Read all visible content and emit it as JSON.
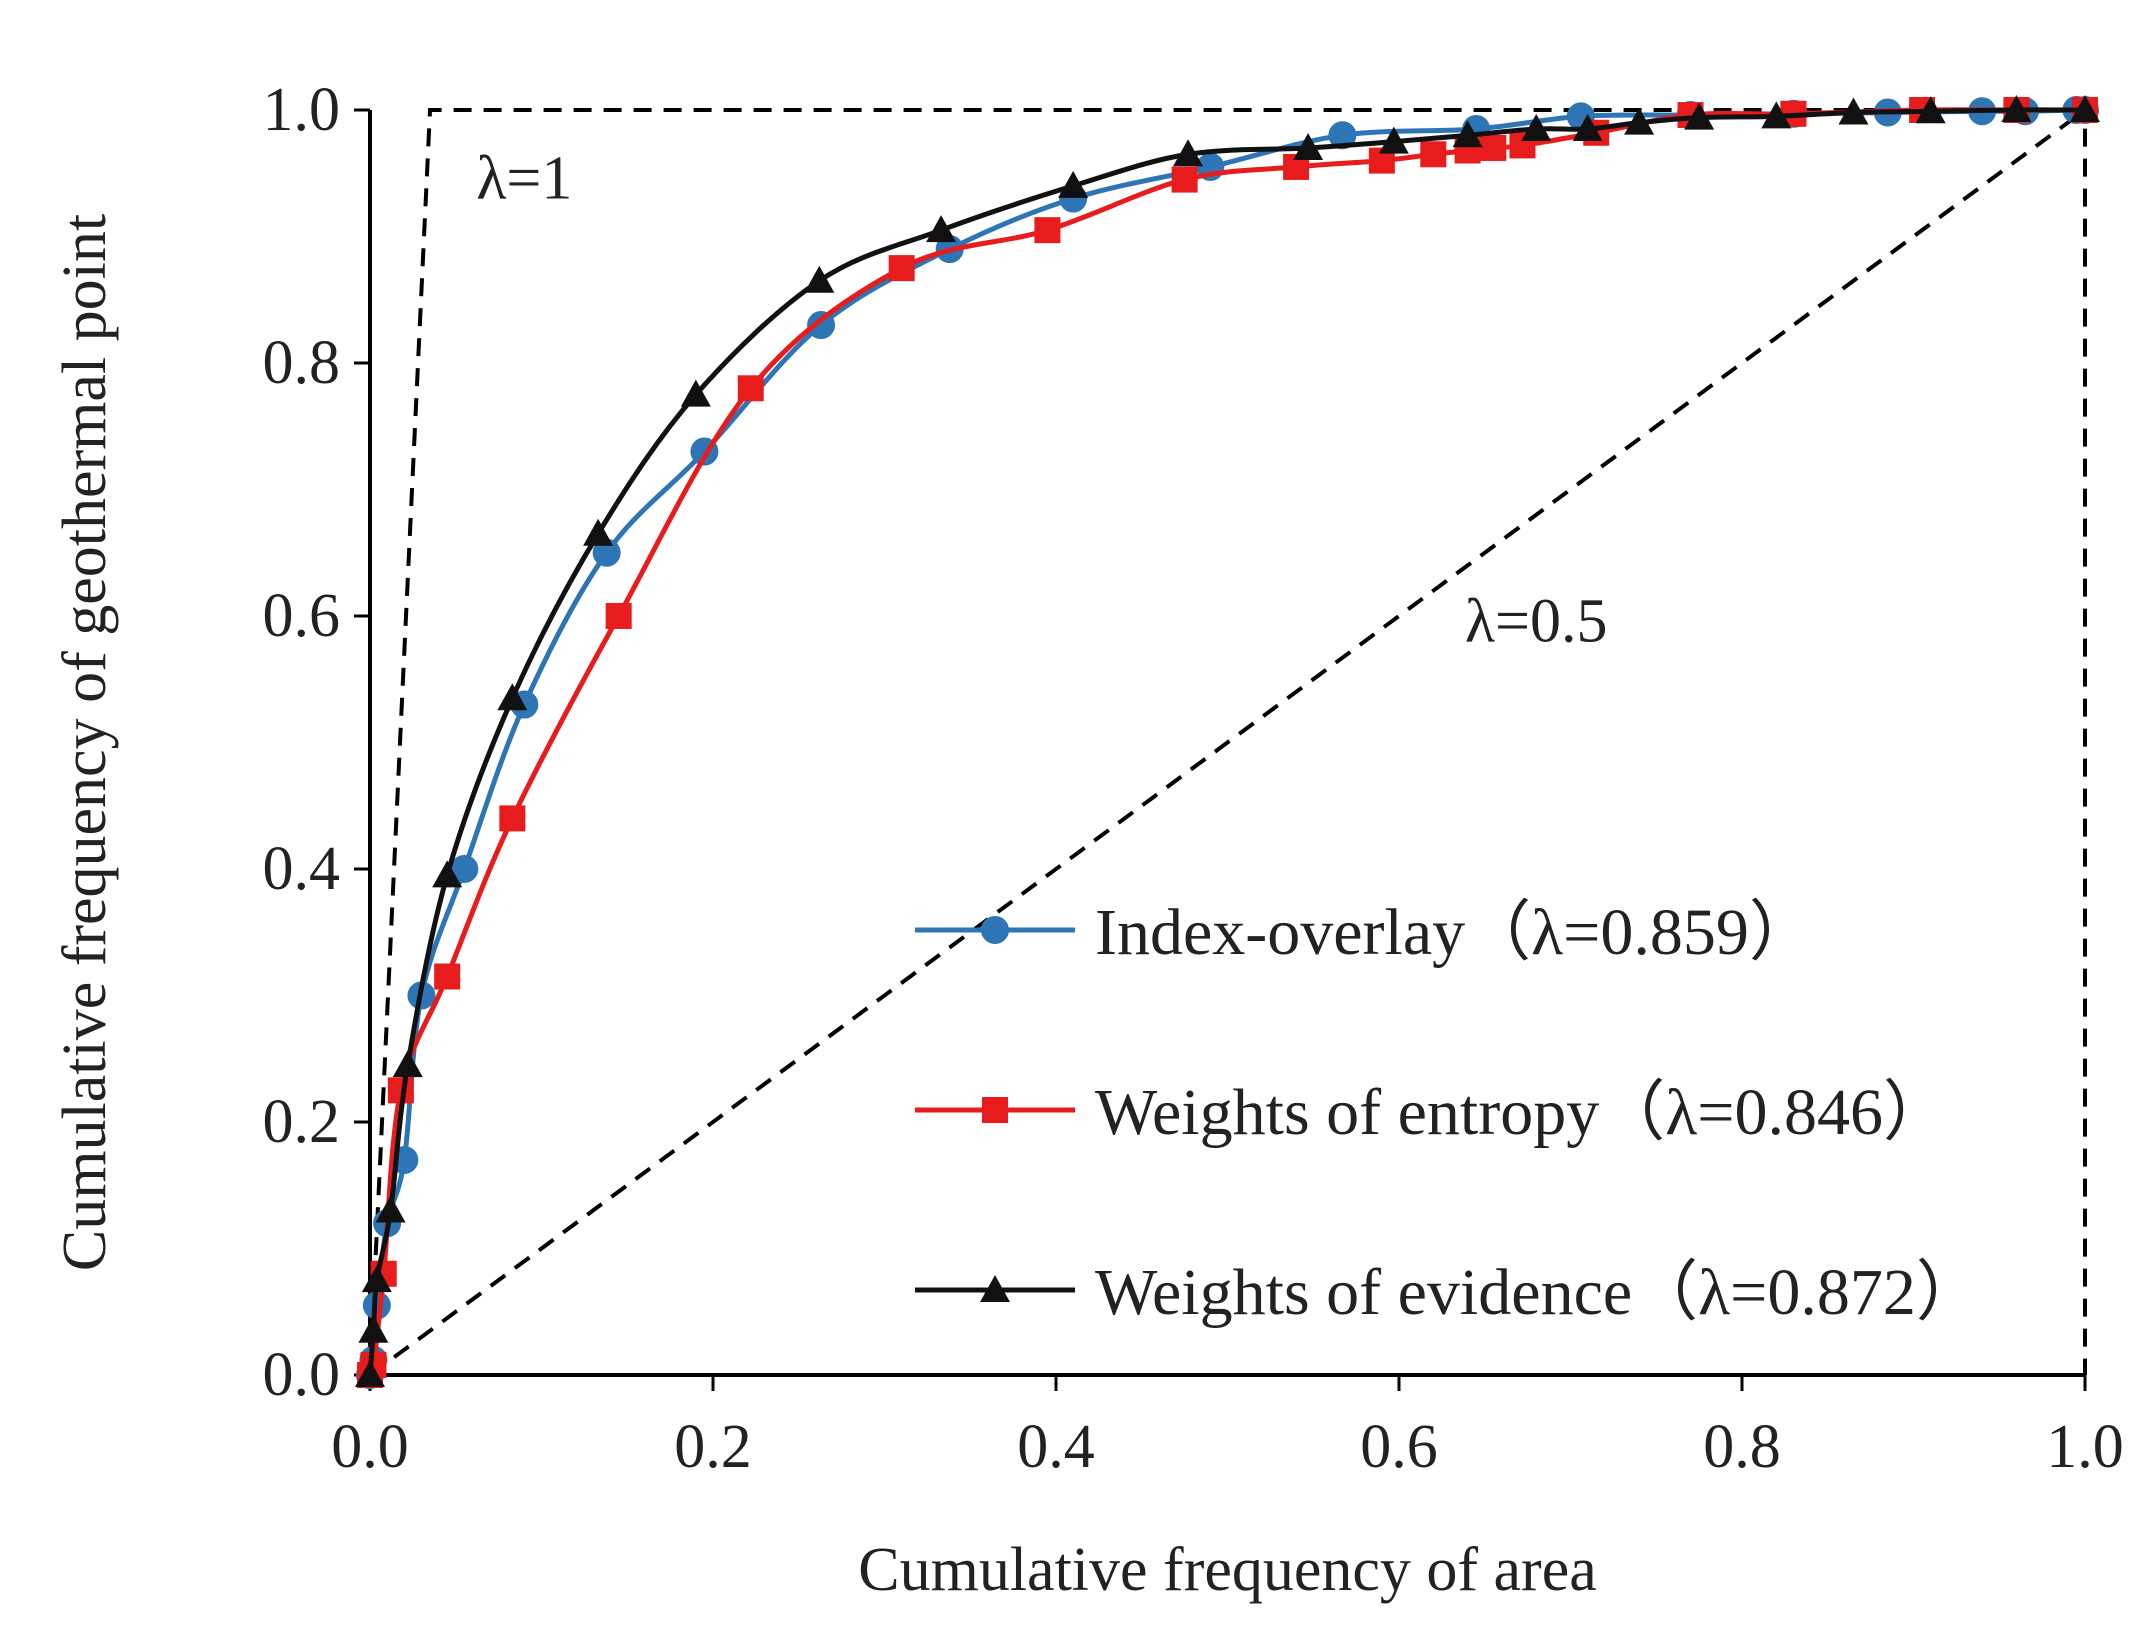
{
  "chart_data": {
    "type": "line",
    "xlabel": "Cumulative frequency of area",
    "ylabel": "Cumulative frequency of geothermal point",
    "xlim": [
      0,
      1
    ],
    "ylim": [
      0,
      1
    ],
    "xticks": [
      "0.0",
      "0.2",
      "0.4",
      "0.6",
      "0.8",
      "1.0"
    ],
    "yticks": [
      "0.0",
      "0.2",
      "0.4",
      "0.6",
      "0.8",
      "1.0"
    ],
    "grid": false,
    "legend_position": "bottom-right",
    "annotations": [
      {
        "text": "λ=1",
        "x": 0.09,
        "y": 0.93
      },
      {
        "text": "λ=0.5",
        "x": 0.68,
        "y": 0.58
      }
    ],
    "reference_lines": [
      {
        "name": "lambda-1-line",
        "style": "dashed",
        "x": [
          0,
          0.035,
          1,
          1
        ],
        "y": [
          0,
          1,
          1,
          0
        ]
      },
      {
        "name": "lambda-0.5-line",
        "style": "dashed",
        "x": [
          0,
          1
        ],
        "y": [
          0,
          1
        ]
      }
    ],
    "series": [
      {
        "name": "Index-overlay（λ=0.859）",
        "color": "#2e75b6",
        "marker": "circle",
        "x": [
          0,
          0.002,
          0.004,
          0.01,
          0.02,
          0.03,
          0.055,
          0.09,
          0.138,
          0.195,
          0.263,
          0.338,
          0.41,
          0.49,
          0.567,
          0.645,
          0.706,
          0.77,
          0.83,
          0.885,
          0.94,
          0.965,
          0.995,
          1.0
        ],
        "y": [
          0,
          0.012,
          0.055,
          0.12,
          0.17,
          0.3,
          0.4,
          0.53,
          0.65,
          0.73,
          0.83,
          0.89,
          0.93,
          0.955,
          0.98,
          0.985,
          0.995,
          0.996,
          0.997,
          0.998,
          0.999,
          0.999,
          1.0,
          1.0
        ]
      },
      {
        "name": "Weights of entropy（λ=0.846）",
        "color": "#e81c1c",
        "marker": "square",
        "x": [
          0,
          0.002,
          0.008,
          0.018,
          0.045,
          0.083,
          0.145,
          0.222,
          0.31,
          0.395,
          0.475,
          0.54,
          0.59,
          0.62,
          0.64,
          0.655,
          0.672,
          0.715,
          0.77,
          0.83,
          0.905,
          0.96,
          1.0
        ],
        "y": [
          0,
          0.008,
          0.08,
          0.225,
          0.315,
          0.44,
          0.6,
          0.78,
          0.875,
          0.905,
          0.945,
          0.955,
          0.96,
          0.965,
          0.968,
          0.97,
          0.972,
          0.982,
          0.996,
          0.997,
          1.0,
          1.0,
          1.0
        ]
      },
      {
        "name": "Weights of evidence（λ=0.872）",
        "color": "#111111",
        "marker": "triangle",
        "x": [
          0,
          0.002,
          0.004,
          0.012,
          0.022,
          0.045,
          0.083,
          0.133,
          0.19,
          0.262,
          0.333,
          0.41,
          0.477,
          0.547,
          0.597,
          0.64,
          0.68,
          0.71,
          0.74,
          0.775,
          0.82,
          0.865,
          0.91,
          0.96,
          1.0
        ],
        "y": [
          0,
          0.035,
          0.075,
          0.13,
          0.245,
          0.395,
          0.535,
          0.665,
          0.775,
          0.865,
          0.905,
          0.94,
          0.965,
          0.97,
          0.975,
          0.98,
          0.985,
          0.985,
          0.99,
          0.994,
          0.995,
          0.998,
          0.999,
          1.0,
          1.0
        ]
      }
    ]
  }
}
